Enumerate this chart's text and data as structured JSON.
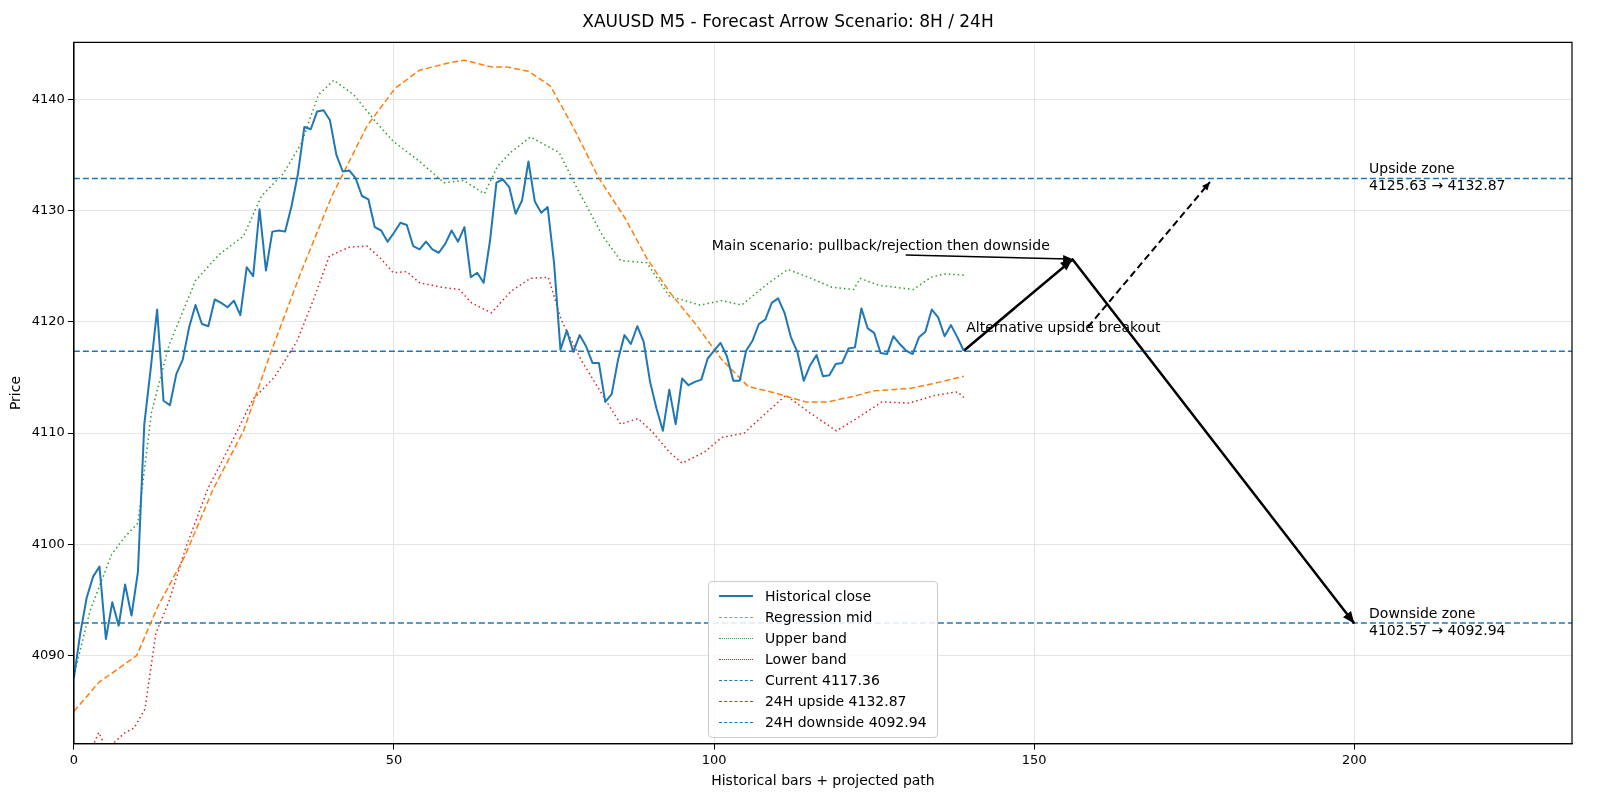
{
  "chart_data": {
    "type": "line",
    "title": "XAUUSD M5 - Forecast Arrow Scenario: 8H / 24H",
    "xlabel": "Historical bars + projected path",
    "ylabel": "Price",
    "xlim": [
      0,
      234
    ],
    "ylim": [
      4082.1,
      4145.1
    ],
    "xticks": [
      0,
      50,
      100,
      150,
      200
    ],
    "yticks": [
      4090,
      4100,
      4110,
      4120,
      4130,
      4140
    ],
    "grid": true,
    "legend": "bottom",
    "series": [
      {
        "name": "Historical close",
        "color": "#1f77b4",
        "line_style": "solid",
        "x": [
          0,
          1,
          2,
          3,
          4,
          5,
          6,
          7,
          8,
          9,
          10,
          11,
          12,
          13,
          14,
          15,
          16,
          17,
          18,
          19,
          20,
          21,
          22,
          23,
          24,
          25,
          26,
          27,
          28,
          29,
          30,
          31,
          32,
          33,
          34,
          35,
          36,
          37,
          38,
          39,
          40,
          41,
          42,
          43,
          44,
          45,
          46,
          47,
          48,
          49,
          50,
          51,
          52,
          53,
          54,
          55,
          56,
          57,
          58,
          59,
          60,
          61,
          62,
          63,
          64,
          65,
          66,
          67,
          68,
          69,
          70,
          71,
          72,
          73,
          74,
          75,
          76,
          77,
          78,
          79,
          80,
          81,
          82,
          83,
          84,
          85,
          86,
          87,
          88,
          89,
          90,
          91,
          92,
          93,
          94,
          95,
          96,
          97,
          98,
          99,
          100,
          101,
          102,
          103,
          104,
          105,
          106,
          107,
          108,
          109,
          110,
          111,
          112,
          113,
          114,
          115,
          116,
          117,
          118,
          119,
          120,
          121,
          122,
          123,
          124,
          125,
          126,
          127,
          128,
          129,
          130,
          131,
          132,
          133,
          134,
          135,
          136,
          137,
          138,
          139
        ],
        "values": [
          4088.0,
          4092.0,
          4095.2,
          4097.1,
          4098.0,
          4091.5,
          4094.8,
          4092.7,
          4096.4,
          4093.6,
          4097.5,
          4110.8,
          4115.8,
          4121.1,
          4112.9,
          4112.5,
          4115.3,
          4116.6,
          4119.5,
          4121.5,
          4119.8,
          4119.6,
          4122.0,
          4121.7,
          4121.3,
          4121.9,
          4120.6,
          4124.9,
          4124.1,
          4130.1,
          4124.6,
          4128.1,
          4128.2,
          4128.1,
          4130.4,
          4133.3,
          4137.5,
          4137.3,
          4138.9,
          4139.0,
          4138.1,
          4135.0,
          4133.5,
          4133.6,
          4132.9,
          4131.3,
          4131.0,
          4128.5,
          4128.2,
          4127.2,
          4128.0,
          4128.9,
          4128.7,
          4126.8,
          4126.5,
          4127.2,
          4126.5,
          4126.2,
          4127.0,
          4128.2,
          4127.2,
          4128.5,
          4124.0,
          4124.4,
          4123.5,
          4127.3,
          4132.5,
          4132.8,
          4132.1,
          4129.7,
          4130.9,
          4134.4,
          4130.8,
          4129.8,
          4130.3,
          4125.3,
          4117.5,
          4119.2,
          4117.3,
          4118.8,
          4117.8,
          4116.3,
          4116.3,
          4112.8,
          4113.5,
          4116.6,
          4118.8,
          4118.0,
          4119.6,
          4118.2,
          4114.6,
          4112.2,
          4110.2,
          4113.9,
          4110.8,
          4114.9,
          4114.3,
          4114.6,
          4114.8,
          4116.7,
          4117.4,
          4118.1,
          4116.9,
          4114.7,
          4114.7,
          4117.4,
          4118.3,
          4119.8,
          4120.2,
          4121.7,
          4122.1,
          4120.8,
          4118.6,
          4117.3,
          4114.7,
          4116.1,
          4117.0,
          4115.1,
          4115.2,
          4116.2,
          4116.3,
          4117.6,
          4117.7,
          4121.2,
          4119.4,
          4119.0,
          4117.2,
          4117.1,
          4118.7,
          4118.0,
          4117.4,
          4117.1,
          4118.6,
          4119.1,
          4121.1,
          4120.4,
          4118.7,
          4119.7,
          4118.6,
          4117.4
        ]
      },
      {
        "name": "Regression mid",
        "color": "#ff7f0e",
        "line_style": "dashed",
        "x": [
          0,
          3.9,
          9.8,
          13.1,
          17.3,
          21.7,
          26.5,
          30.6,
          35.5,
          40.3,
          45.8,
          50.2,
          54,
          58.8,
          61,
          65.2,
          67.6,
          71,
          74.4,
          77.9,
          82,
          86.1,
          89.5,
          93,
          97.1,
          101.2,
          105.3,
          109.5,
          114.3,
          117.7,
          121.8,
          125,
          130.5,
          133.9,
          139
        ],
        "values": [
          4085.0,
          4087.6,
          4090.0,
          4094.4,
          4098.9,
          4104.9,
          4110.2,
          4117.0,
          4124.5,
          4131.3,
          4137.6,
          4141.0,
          4142.6,
          4143.3,
          4143.5,
          4142.9,
          4142.9,
          4142.5,
          4141.2,
          4137.6,
          4132.9,
          4129.3,
          4125.7,
          4122.7,
          4119.8,
          4116.6,
          4114.2,
          4113.6,
          4112.8,
          4112.8,
          4113.3,
          4113.8,
          4114.0,
          4114.4,
          4115.1
        ]
      },
      {
        "name": "Upper band",
        "color": "#2ca02c",
        "line_style": "dotted",
        "x": [
          0,
          2.5,
          5.9,
          8,
          10,
          12.1,
          14.8,
          19,
          22.8,
          26.5,
          29.3,
          32.7,
          35.5,
          38.2,
          40.6,
          43.7,
          47.1,
          49.9,
          54,
          57.8,
          60.9,
          64.1,
          66.2,
          68.2,
          71.3,
          75.8,
          78.5,
          82.6,
          85.4,
          89.5,
          93,
          97.8,
          101.2,
          104.3,
          108.1,
          111.5,
          114.3,
          118.4,
          121.8,
          122.8,
          125.6,
          131.1,
          133.9,
          135.9,
          139
        ],
        "values": [
          4088.2,
          4094.0,
          4099.1,
          4100.7,
          4101.9,
          4111.8,
          4117.8,
          4123.7,
          4126.1,
          4127.7,
          4131.3,
          4133.3,
          4136.0,
          4140.4,
          4141.7,
          4140.4,
          4138.0,
          4136.2,
          4134.4,
          4132.5,
          4132.7,
          4131.5,
          4134.0,
          4135.2,
          4136.6,
          4135.2,
          4132.1,
          4127.7,
          4125.5,
          4125.3,
          4122.3,
          4121.5,
          4121.9,
          4121.5,
          4123.3,
          4124.7,
          4124.1,
          4123.1,
          4122.9,
          4123.9,
          4123.3,
          4122.9,
          4124.0,
          4124.3,
          4124.2
        ]
      },
      {
        "name": "Lower band",
        "color": "#d62728",
        "line_style": "dotted",
        "x": [
          3.2,
          3.9,
          4.6,
          5.5,
          6.3,
          8,
          9.4,
          11.1,
          12.8,
          14.8,
          17.6,
          21,
          24.5,
          27.9,
          31.3,
          34.8,
          37.5,
          39.9,
          43,
          45.8,
          47.9,
          49.9,
          52,
          54,
          57.5,
          60.2,
          62.1,
          65.2,
          68.2,
          71.3,
          74.1,
          76.1,
          79.2,
          82.6,
          85.4,
          88.1,
          90.2,
          93,
          95,
          98.5,
          101.2,
          104.7,
          108.1,
          111.2,
          115,
          119.1,
          122.5,
          126.2,
          130.5,
          134.6,
          138,
          139
        ],
        "values": [
          4082.2,
          4083.1,
          4082.2,
          null,
          4082.2,
          4083.1,
          4083.5,
          4085.2,
          4092.0,
          4094.8,
          4099.9,
          4105.1,
          4109.0,
          4113.0,
          4115.0,
          4118.2,
          4122.1,
          4125.9,
          4126.7,
          4126.8,
          4125.7,
          4124.4,
          4124.5,
          4123.5,
          4123.1,
          4122.9,
          4121.7,
          4120.8,
          4122.7,
          4123.9,
          4124.0,
          4120.2,
          4116.6,
          4113.4,
          4110.8,
          4111.3,
          4110.2,
          4108.3,
          4107.3,
          4108.3,
          4109.6,
          4110.0,
          4111.8,
          4113.4,
          4111.8,
          4110.2,
          4111.4,
          4112.8,
          4112.7,
          4113.4,
          4113.7,
          4113.2
        ]
      },
      {
        "color": "#000000",
        "line_style": "solid",
        "x": [
          139,
          156,
          200
        ],
        "values": [
          4117.4,
          4125.6,
          4092.9
        ]
      }
    ],
    "ref_lines": [
      {
        "axis": "y",
        "value": 4117.36,
        "label": "Current 4117.36",
        "color": "#1f77b4",
        "line_style": "dashed"
      },
      {
        "axis": "y",
        "value": 4132.87,
        "label": "24H upside 4132.87",
        "color": "#1f77b4",
        "line_style": "dashed"
      },
      {
        "axis": "y",
        "value": 4092.94,
        "label": "24H downside 4092.94",
        "color": "#1f77b4",
        "line_style": "dashed"
      }
    ],
    "annotations": [
      {
        "text": "Main scenario: pullback/rejection then downside",
        "x": 156,
        "y": 4125.63
      },
      {
        "text": "Alternative upside breakout",
        "x": 177.5,
        "y": 4132.6
      },
      {
        "text": "Upside zone\n4125.63 → 4132.87",
        "x": 202.3,
        "y": 4132.87
      },
      {
        "text": "Downside zone\n4102.57 → 4092.94",
        "x": 202.3,
        "y": 4092.94
      }
    ]
  }
}
